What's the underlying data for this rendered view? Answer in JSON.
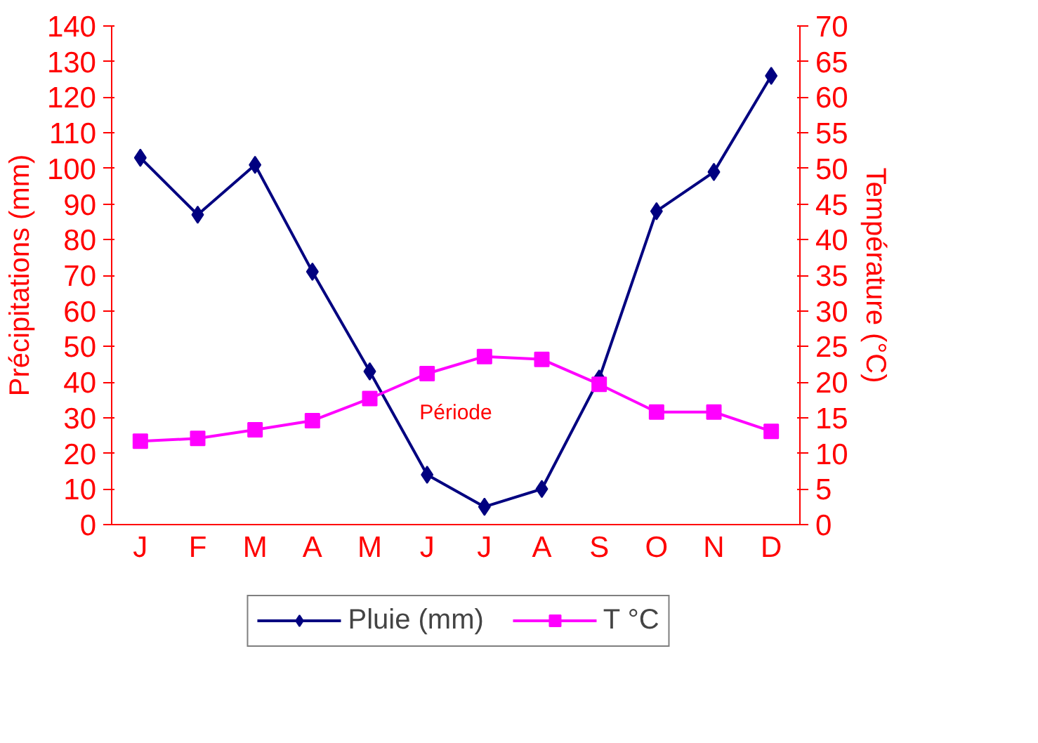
{
  "chart_data": {
    "type": "line",
    "categories": [
      "J",
      "F",
      "M",
      "A",
      "M",
      "J",
      "J",
      "A",
      "S",
      "O",
      "N",
      "D"
    ],
    "series": [
      {
        "name": "Pluie (mm)",
        "color": "#000080",
        "marker": "diamond",
        "values": [
          103,
          87,
          101,
          71,
          43,
          14,
          5,
          10,
          41,
          88,
          99,
          126
        ]
      },
      {
        "name": "T °C",
        "color": "#ff00ff",
        "marker": "square",
        "axis": "y2",
        "values": [
          11.7,
          12.1,
          13.3,
          14.6,
          17.7,
          21.2,
          23.6,
          23.2,
          19.7,
          15.8,
          15.8,
          13.1
        ]
      }
    ],
    "ylabel": "Précipitations (mm)",
    "y2label": "Température (°C)",
    "ylim": [
      0,
      140
    ],
    "yticks": [
      0,
      10,
      20,
      30,
      40,
      50,
      60,
      70,
      80,
      90,
      100,
      110,
      120,
      130,
      140
    ],
    "y2lim": [
      0,
      70
    ],
    "y2ticks": [
      0,
      5,
      10,
      15,
      20,
      25,
      30,
      35,
      40,
      45,
      50,
      55,
      60,
      65,
      70
    ],
    "annotations": [
      "Période"
    ],
    "grid": false,
    "legend": "bottom"
  }
}
